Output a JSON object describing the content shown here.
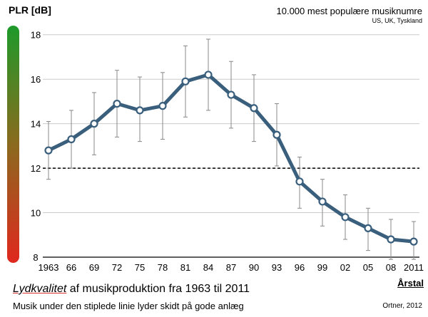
{
  "chart_data": {
    "type": "line",
    "ylabel": "PLR [dB]",
    "xlabel": "Årstal",
    "subtitle": "10.000 mest populære musiknumre",
    "subtitle2": "US, UK, Tyskland",
    "caption_italic": "Lydkvalitet",
    "caption_rest": " af musikproduktion fra 1963 til 2011",
    "caption2": "Musik under den stiplede linie lyder skidt på gode anlæg",
    "credit": "Ortner, 2012",
    "categories": [
      "1963",
      "66",
      "69",
      "72",
      "75",
      "78",
      "81",
      "84",
      "87",
      "90",
      "93",
      "96",
      "99",
      "02",
      "05",
      "08",
      "2011"
    ],
    "y_ticks": [
      "8",
      "10",
      "12",
      "14",
      "16",
      "18"
    ],
    "ylim": [
      8,
      18.6
    ],
    "threshold": 12,
    "series": [
      {
        "values": [
          12.8,
          13.3,
          14.0,
          14.9,
          14.6,
          14.8,
          15.9,
          16.2,
          15.3,
          14.7,
          13.5,
          11.4,
          10.5,
          9.8,
          9.3,
          8.8,
          8.7
        ],
        "err_low": [
          11.5,
          12.0,
          12.6,
          13.4,
          13.2,
          13.3,
          14.3,
          14.6,
          13.8,
          13.2,
          12.1,
          10.2,
          9.4,
          8.8,
          8.3,
          7.9,
          7.9
        ],
        "err_high": [
          14.1,
          14.6,
          15.4,
          16.4,
          16.1,
          16.3,
          17.5,
          17.8,
          16.8,
          16.2,
          14.9,
          12.5,
          11.5,
          10.8,
          10.2,
          9.7,
          9.6
        ]
      }
    ],
    "colors": {
      "line": "#3a5f7d",
      "marker_fill": "#ffffff",
      "grid": "#cccccc",
      "scale_top": "#1e9a2a",
      "scale_mid": "#8a6a1e",
      "scale_bottom": "#e0281e"
    },
    "grid": true
  }
}
